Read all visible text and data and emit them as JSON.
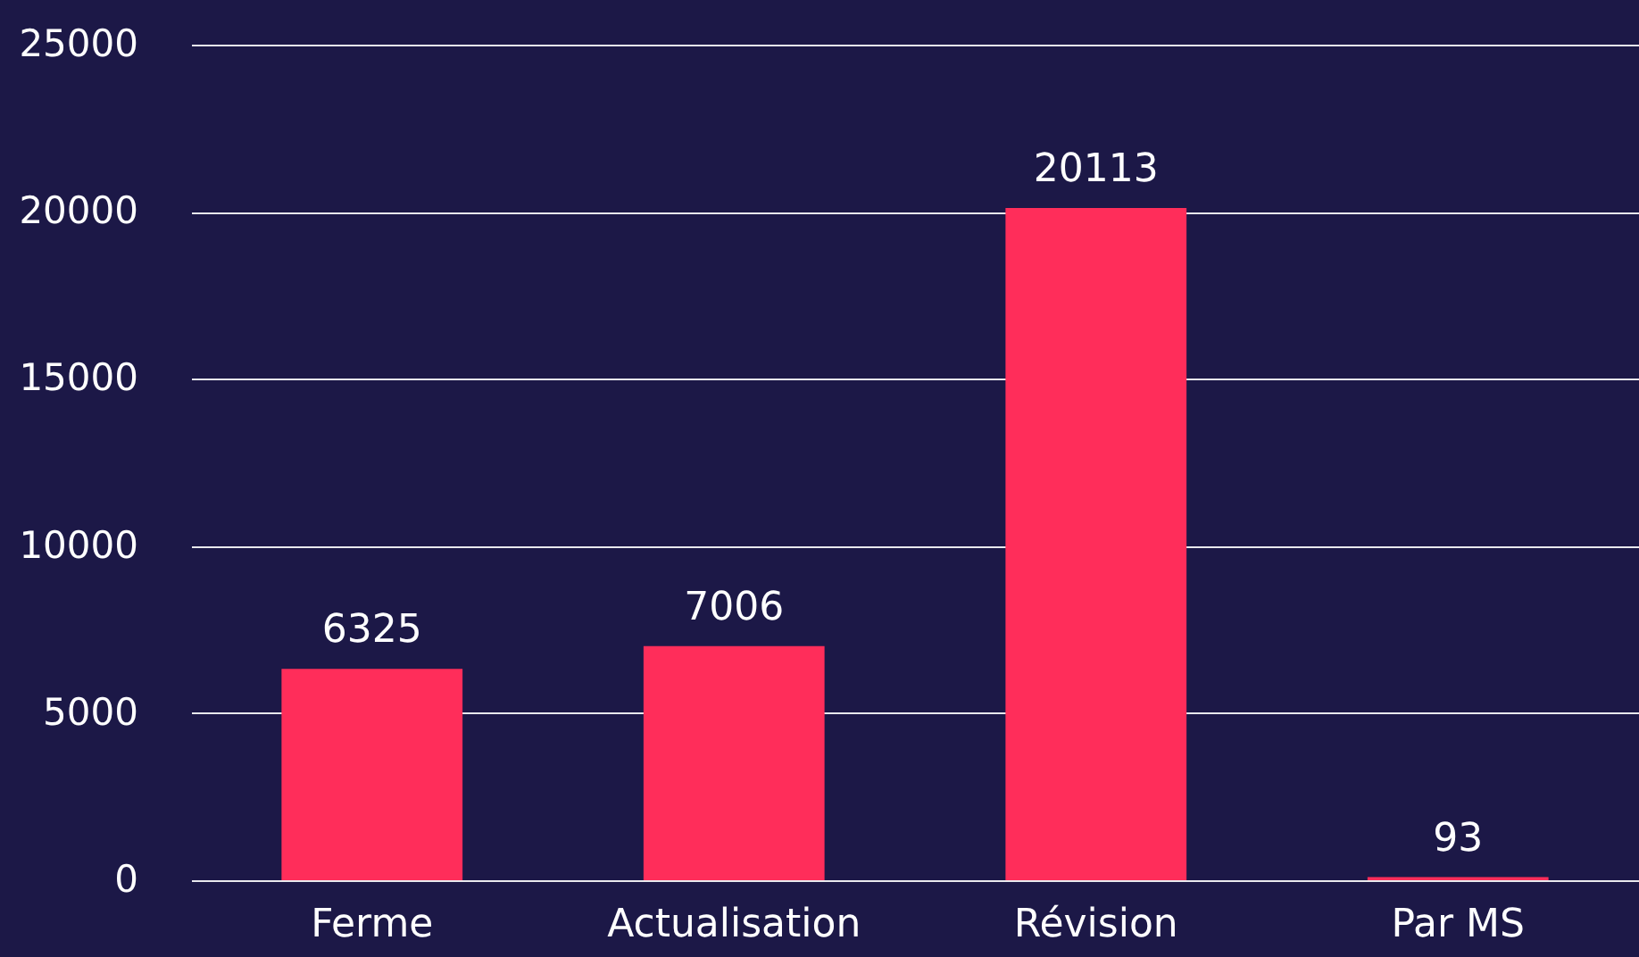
{
  "chart_data": {
    "type": "bar",
    "categories": [
      "Ferme",
      "Actualisation",
      "Révision",
      "Par MS"
    ],
    "values": [
      6325,
      7006,
      20113,
      93
    ],
    "color": "#ff2d5a",
    "ylim": [
      0,
      25000
    ],
    "yticks": [
      0,
      5000,
      10000,
      15000,
      20000,
      25000
    ],
    "grid": "y",
    "data_labels": true
  }
}
